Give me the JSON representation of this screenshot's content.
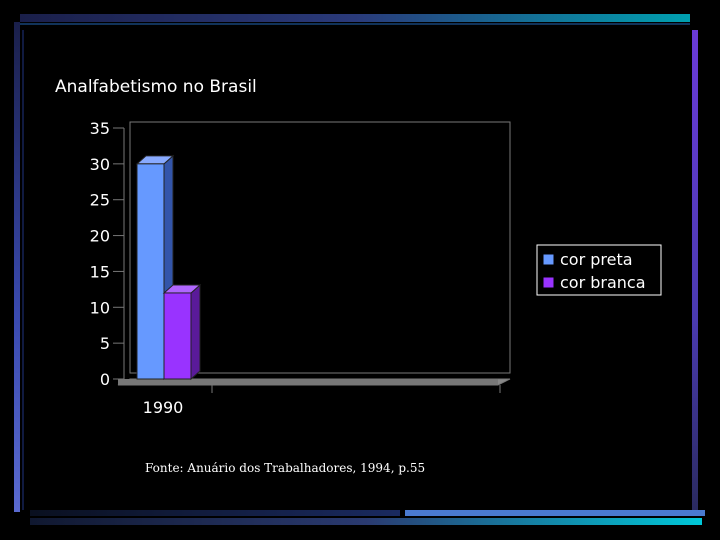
{
  "chart_data": {
    "type": "bar",
    "title": "Analfabetismo no Brasil",
    "categories": [
      "1990"
    ],
    "series": [
      {
        "name": "cor preta",
        "values": [
          30
        ],
        "color": "#6699ff"
      },
      {
        "name": "cor branca",
        "values": [
          12
        ],
        "color": "#9933ff"
      }
    ],
    "ylim": [
      0,
      35
    ],
    "yticks": [
      "0",
      "5",
      "10",
      "15",
      "20",
      "25",
      "30",
      "35"
    ],
    "grid": false,
    "legend_position": "right"
  },
  "footer": {
    "source": "Fonte: Anuário dos Trabalhadores, 1994, p.55"
  }
}
